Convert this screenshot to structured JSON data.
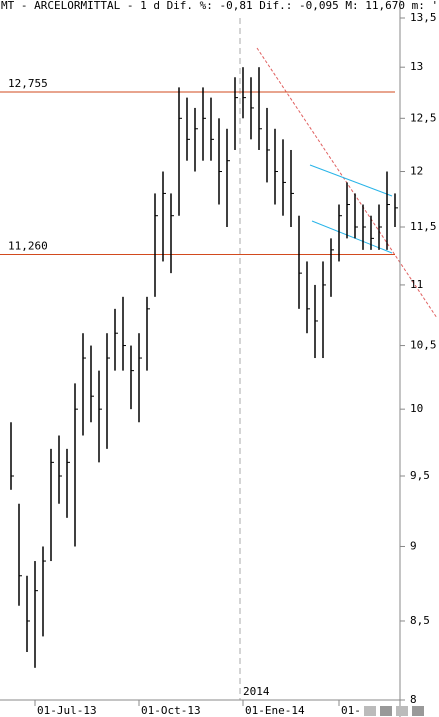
{
  "chart_data": {
    "type": "hlc",
    "title": "MT - ARCELORMITTAL -  1 d Dif. %: -0,81 Dif.: -0,095 M: 11,670 m: '",
    "year_marker": "2014",
    "categories": [
      null,
      null,
      null,
      "01-Jul-13",
      null,
      null,
      null,
      null,
      null,
      null,
      null,
      null,
      null,
      null,
      null,
      null,
      "01-Oct-13",
      null,
      null,
      null,
      null,
      null,
      null,
      null,
      null,
      null,
      null,
      null,
      null,
      "01-Ene-14",
      null,
      null,
      null,
      null,
      null,
      null,
      null,
      null,
      null,
      null,
      null,
      "01-",
      null,
      null,
      null,
      null,
      null,
      null,
      null
    ],
    "high": [
      9.9,
      9.3,
      8.8,
      8.9,
      9.0,
      9.7,
      9.8,
      9.7,
      10.2,
      10.6,
      10.5,
      10.3,
      10.6,
      10.8,
      10.9,
      10.5,
      10.6,
      10.9,
      11.8,
      12.0,
      11.8,
      12.8,
      12.7,
      12.6,
      12.8,
      12.7,
      12.5,
      12.4,
      12.9,
      13.0,
      12.9,
      13.0,
      12.6,
      12.4,
      12.3,
      12.2,
      11.6,
      11.2,
      11.0,
      11.2,
      11.4,
      11.7,
      11.9,
      11.8,
      11.7,
      11.6,
      11.7,
      12.0,
      11.8
    ],
    "low": [
      9.4,
      8.6,
      8.3,
      8.2,
      8.4,
      8.9,
      9.3,
      9.2,
      9.0,
      9.8,
      9.9,
      9.6,
      9.7,
      10.3,
      10.3,
      10.0,
      9.9,
      10.3,
      10.9,
      11.2,
      11.1,
      11.6,
      12.1,
      12.0,
      12.1,
      12.1,
      11.7,
      11.5,
      12.2,
      12.5,
      12.3,
      12.2,
      11.9,
      11.7,
      11.6,
      11.5,
      10.8,
      10.6,
      10.4,
      10.4,
      10.9,
      11.2,
      11.4,
      11.4,
      11.3,
      11.3,
      11.3,
      11.3,
      11.5
    ],
    "close": [
      9.5,
      8.8,
      8.5,
      8.7,
      8.9,
      9.6,
      9.5,
      9.6,
      10.0,
      10.4,
      10.1,
      10.0,
      10.4,
      10.6,
      10.5,
      10.3,
      10.4,
      10.8,
      11.6,
      11.8,
      11.6,
      12.5,
      12.3,
      12.4,
      12.5,
      12.3,
      12.0,
      12.1,
      12.7,
      12.7,
      12.6,
      12.4,
      12.2,
      12.0,
      11.9,
      11.8,
      11.1,
      10.8,
      10.7,
      11.0,
      11.3,
      11.6,
      11.7,
      11.5,
      11.5,
      11.4,
      11.5,
      11.7,
      11.67
    ],
    "color": "#000000",
    "ylim": [
      8,
      13.5
    ],
    "log_scale": true,
    "yticks": [
      8,
      {
        "value": 8.5,
        "label": "8,5"
      },
      9,
      {
        "value": 9.5,
        "label": "9,5"
      },
      10,
      {
        "value": 10.5,
        "label": "10,5"
      },
      11,
      {
        "value": 11.5,
        "label": "11,5"
      },
      12,
      {
        "value": 12.5,
        "label": "12,5"
      },
      13,
      {
        "value": 13.5,
        "label": "13,5"
      }
    ],
    "levels": [
      {
        "value": 12.755,
        "label": "12,755"
      },
      {
        "value": 11.26,
        "label": "11,260"
      }
    ],
    "level_color": "#d24a1e"
  }
}
